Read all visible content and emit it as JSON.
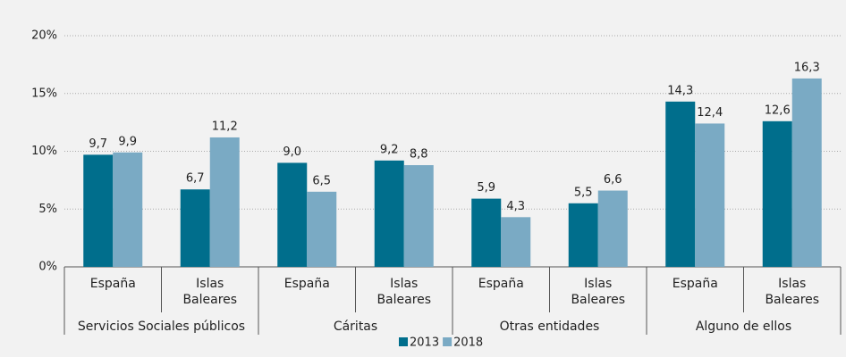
{
  "chart_data": {
    "type": "bar",
    "groups": [
      "Servicios Sociales públicos",
      "Cáritas",
      "Otras entidades",
      "Alguno de ellos"
    ],
    "categories": [
      "España",
      "Islas Baleares",
      "España",
      "Islas Baleares",
      "España",
      "Islas Baleares",
      "España",
      "Islas Baleares"
    ],
    "series": [
      {
        "name": "2013",
        "color": "#006e8c",
        "values": [
          9.7,
          6.7,
          9.0,
          9.2,
          5.9,
          5.5,
          14.3,
          12.6
        ],
        "value_labels": [
          "9,7",
          "6,7",
          "9,0",
          "9,2",
          "5,9",
          "5,5",
          "14,3",
          "12,6"
        ]
      },
      {
        "name": "2018",
        "color": "#7aaac4",
        "values": [
          9.9,
          11.2,
          6.5,
          8.8,
          4.3,
          6.6,
          12.4,
          16.3
        ],
        "value_labels": [
          "9,9",
          "11,2",
          "6,5",
          "8,8",
          "4,3",
          "6,6",
          "12,4",
          "16,3"
        ]
      }
    ],
    "ylim": [
      0,
      20
    ],
    "yticks": [
      {
        "value": 0,
        "label": "0%"
      },
      {
        "value": 5,
        "label": "5%"
      },
      {
        "value": 10,
        "label": "10%"
      },
      {
        "value": 15,
        "label": "15%"
      },
      {
        "value": 20,
        "label": "20%"
      }
    ],
    "grid": true,
    "legend": "bottom"
  }
}
